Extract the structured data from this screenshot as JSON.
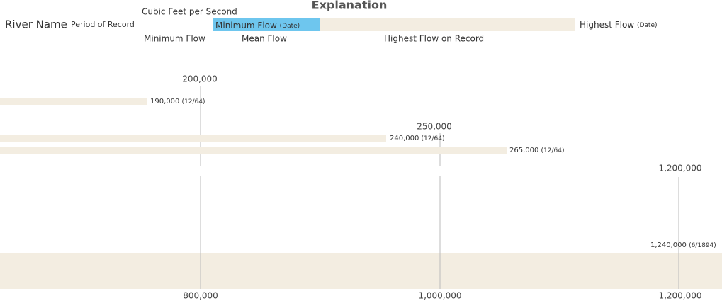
{
  "explanation": {
    "title": "Explanation",
    "unit": "Cubic Feet per Second",
    "river_name": "River Name",
    "period": "Period of Record",
    "min_flow_date": {
      "text": "Minimum Flow",
      "date": "(Date)"
    },
    "highest_flow_date": {
      "text": "Highest Flow",
      "date": "(Date)"
    },
    "min_flow": "Minimum Flow",
    "mean_flow": "Mean Flow",
    "highest_record": "Highest Flow on Record"
  },
  "scale_labels": [
    "200,000",
    "250,000",
    "1,200,000"
  ],
  "bottom_axis": [
    "800,000",
    "1,000,000",
    "1,200,000"
  ],
  "bars": [
    {
      "value": "190,000",
      "date": "(12/64)"
    },
    {
      "value": "240,000",
      "date": "(12/64)"
    },
    {
      "value": "265,000",
      "date": "(12/64)"
    },
    {
      "value": "1,240,000",
      "date": "(6/1894)"
    }
  ]
}
